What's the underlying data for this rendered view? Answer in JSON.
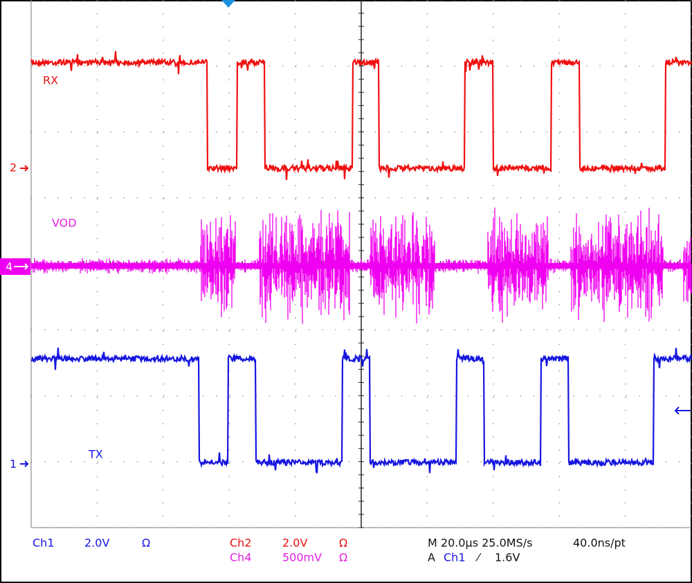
{
  "traces": [
    {
      "label": "RX"
    },
    {
      "label": "VOD"
    },
    {
      "label": "TX"
    }
  ],
  "markers": [
    "2",
    "4",
    "1"
  ],
  "status": {
    "ch1": {
      "name": "Ch1",
      "scale": "2.0V",
      "coupling": "Ω"
    },
    "ch2": {
      "name": "Ch2",
      "scale": "2.0V",
      "coupling": "Ω"
    },
    "ch4": {
      "name": "Ch4",
      "scale": "500mV",
      "coupling": "Ω"
    }
  },
  "timebase": {
    "horizontal": "M 20.0µs 25.0MS/s",
    "resolution": "40.0ns/pt"
  },
  "trigger": {
    "mode": "A",
    "source": "Ch1",
    "slope": "⁄",
    "level": "1.6V"
  }
}
